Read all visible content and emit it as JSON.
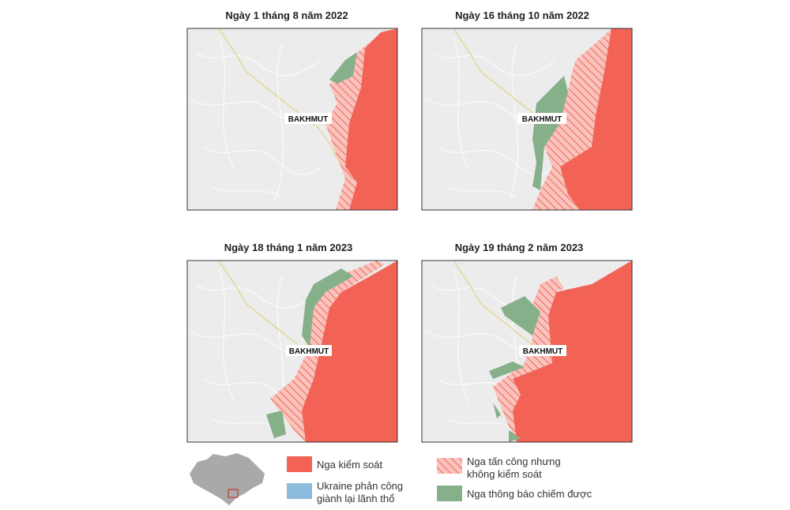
{
  "panels": [
    {
      "title": "Ngày 1 tháng 8 năm 2022",
      "city": "BAKHMUT"
    },
    {
      "title": "Ngày 16 tháng 10 năm 2022",
      "city": "BAKHMUT"
    },
    {
      "title": "Ngày 18 tháng 1 năm 2023",
      "city": "BAKHMUT"
    },
    {
      "title": "Ngày 19 tháng 2 năm 2023",
      "city": "BAKHMUT"
    }
  ],
  "legend": [
    {
      "label": [
        "Nga kiểm soát"
      ]
    },
    {
      "label": [
        "Ukraine phản công",
        "giành lại lãnh thổ"
      ]
    },
    {
      "label": [
        "Nga tấn công nhưng",
        "không kiểm soát"
      ]
    },
    {
      "label": [
        "Nga thông báo chiếm được"
      ]
    }
  ]
}
